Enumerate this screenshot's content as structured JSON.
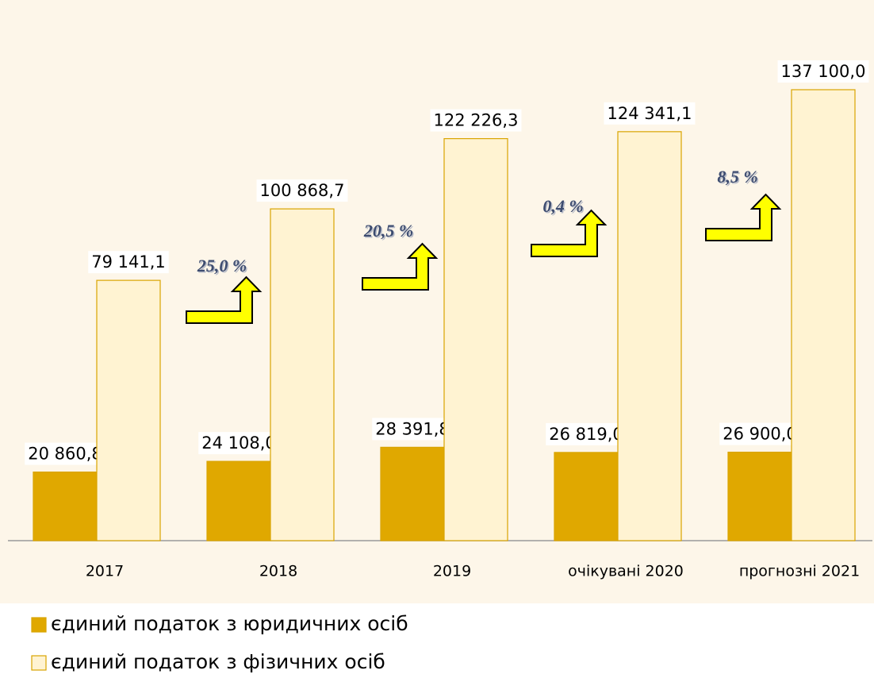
{
  "chart_data": {
    "type": "bar",
    "categories": [
      "2017",
      "2018",
      "2019",
      "очікувані 2020",
      "прогнозні 2021"
    ],
    "series": [
      {
        "name": "єдиний податок з юридичних осіб",
        "color": "#e0a800",
        "values": [
          20860.8,
          24108.0,
          28391.8,
          26819.0,
          26900.0
        ],
        "value_labels": [
          "20 860,8",
          "24 108,0",
          "28 391,8",
          "26 819,0",
          "26 900,0"
        ]
      },
      {
        "name": "єдиний податок з фізичних осіб",
        "color": "#fff3d2",
        "values": [
          79141.1,
          100868.7,
          122226.3,
          124341.1,
          137100.0
        ],
        "value_labels": [
          "79 141,1",
          "100 868,7",
          "122 226,3",
          "124 341,1",
          "137 100,0"
        ]
      }
    ],
    "annotations": [
      "25,0 %",
      "20,5 %",
      "0,4 %",
      "8,5 %"
    ],
    "legend": "bottom-left"
  }
}
